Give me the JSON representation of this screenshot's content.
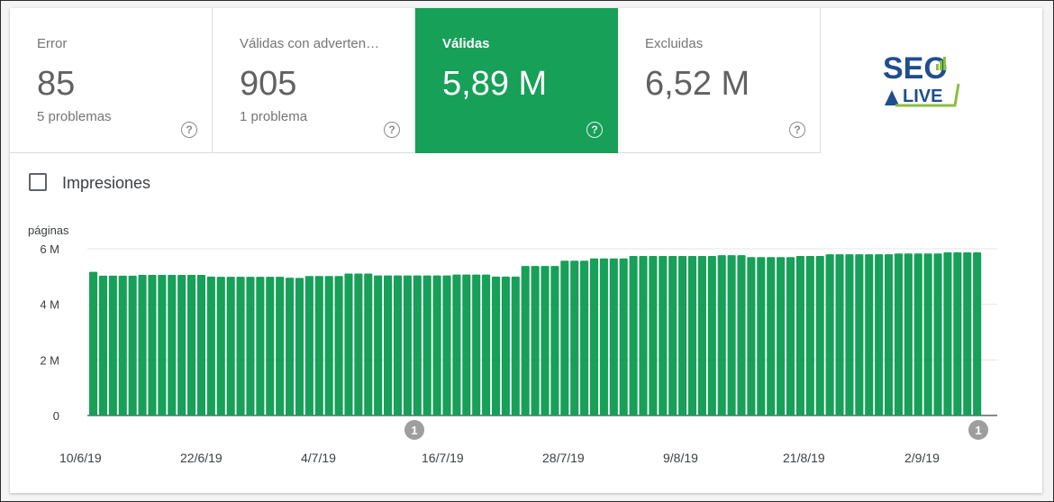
{
  "tiles": [
    {
      "label": "Error",
      "value": "85",
      "sub": "5 problemas",
      "help": "?"
    },
    {
      "label": "Válidas con adverten…",
      "value": "905",
      "sub": "1 problema",
      "help": "?"
    },
    {
      "label": "Válidas",
      "value": "5,89 M",
      "sub": "",
      "help": "?"
    },
    {
      "label": "Excluidas",
      "value": "6,52 M",
      "sub": "",
      "help": "?"
    }
  ],
  "logo": {
    "text_top": "SEO",
    "text_bottom": "LIVE",
    "colors": {
      "navy": "#1f4e8c",
      "green": "#8bbf3f"
    }
  },
  "checkbox": {
    "label": "Impresiones",
    "checked": false
  },
  "colors": {
    "accent": "#16a058",
    "annotation": "#9e9e9e"
  },
  "chart_data": {
    "type": "bar",
    "ylabel": "páginas",
    "ylim": [
      0,
      6000000
    ],
    "y_ticks": [
      "0",
      "2 M",
      "4 M",
      "6 M"
    ],
    "x_tick_labels": [
      "10/6/19",
      "22/6/19",
      "4/7/19",
      "16/7/19",
      "28/7/19",
      "9/8/19",
      "21/8/19",
      "2/9/19"
    ],
    "x_start": "10/6/19",
    "x_end": "8/9/19",
    "annotations": [
      {
        "label": "1",
        "x": "16/7/19"
      },
      {
        "label": "1",
        "x": "8/9/19"
      }
    ],
    "series": [
      {
        "color": "#16a058",
        "values": [
          5170000,
          5030000,
          5030000,
          5030000,
          5030000,
          5060000,
          5060000,
          5060000,
          5060000,
          5060000,
          5060000,
          5060000,
          5000000,
          4990000,
          4990000,
          4990000,
          4990000,
          4990000,
          4990000,
          4990000,
          4960000,
          4950000,
          5020000,
          5020000,
          5020000,
          5020000,
          5110000,
          5110000,
          5110000,
          5040000,
          5040000,
          5040000,
          5040000,
          5040000,
          5040000,
          5040000,
          5040000,
          5070000,
          5070000,
          5070000,
          5070000,
          5000000,
          5000000,
          5000000,
          5380000,
          5380000,
          5380000,
          5380000,
          5570000,
          5570000,
          5570000,
          5650000,
          5650000,
          5650000,
          5650000,
          5740000,
          5740000,
          5740000,
          5740000,
          5740000,
          5740000,
          5740000,
          5740000,
          5740000,
          5770000,
          5770000,
          5770000,
          5700000,
          5700000,
          5700000,
          5700000,
          5700000,
          5740000,
          5740000,
          5740000,
          5800000,
          5800000,
          5800000,
          5800000,
          5800000,
          5800000,
          5800000,
          5830000,
          5830000,
          5830000,
          5830000,
          5830000,
          5870000,
          5870000,
          5870000,
          5870000
        ]
      }
    ]
  }
}
